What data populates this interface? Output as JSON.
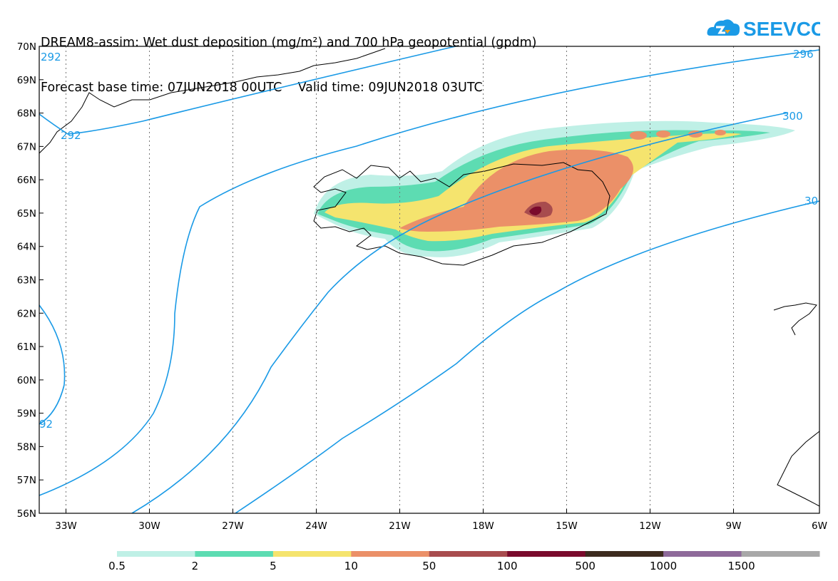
{
  "title": {
    "line1": "DREAM8-assim: Wet dust deposition (mg/m²) and 700 hPa geopotential (gpdm)",
    "line2_label_base": "Forecast base time:",
    "line2_base": "07JUN2018 00UTC",
    "line2_label_valid": "Valid time:",
    "line2_valid": "09JUN2018 03UTC"
  },
  "logo": {
    "text": "SEEVCCC",
    "icon": "cloud-icon",
    "color": "#1a9ae6"
  },
  "map": {
    "lat_labels": [
      "70N",
      "69N",
      "68N",
      "67N",
      "66N",
      "65N",
      "64N",
      "63N",
      "62N",
      "61N",
      "60N",
      "59N",
      "58N",
      "57N",
      "56N"
    ],
    "lon_labels": [
      "33W",
      "30W",
      "27W",
      "24W",
      "21W",
      "18W",
      "15W",
      "12W",
      "9W",
      "6W"
    ],
    "grid": true,
    "contour_color": "#1a9ae6",
    "contour_labels": [
      "292",
      "292",
      "296",
      "300",
      "30",
      "92"
    ]
  },
  "colorbar": {
    "colors": [
      "#bff0e6",
      "#5ddcb2",
      "#f5e46e",
      "#eb9068",
      "#a84c4e",
      "#7a0a2c",
      "#3d2b1f",
      "#8e6a9a",
      "#a8a8a8"
    ],
    "labels": [
      "0.5",
      "2",
      "5",
      "10",
      "50",
      "100",
      "500",
      "1000",
      "1500"
    ]
  }
}
